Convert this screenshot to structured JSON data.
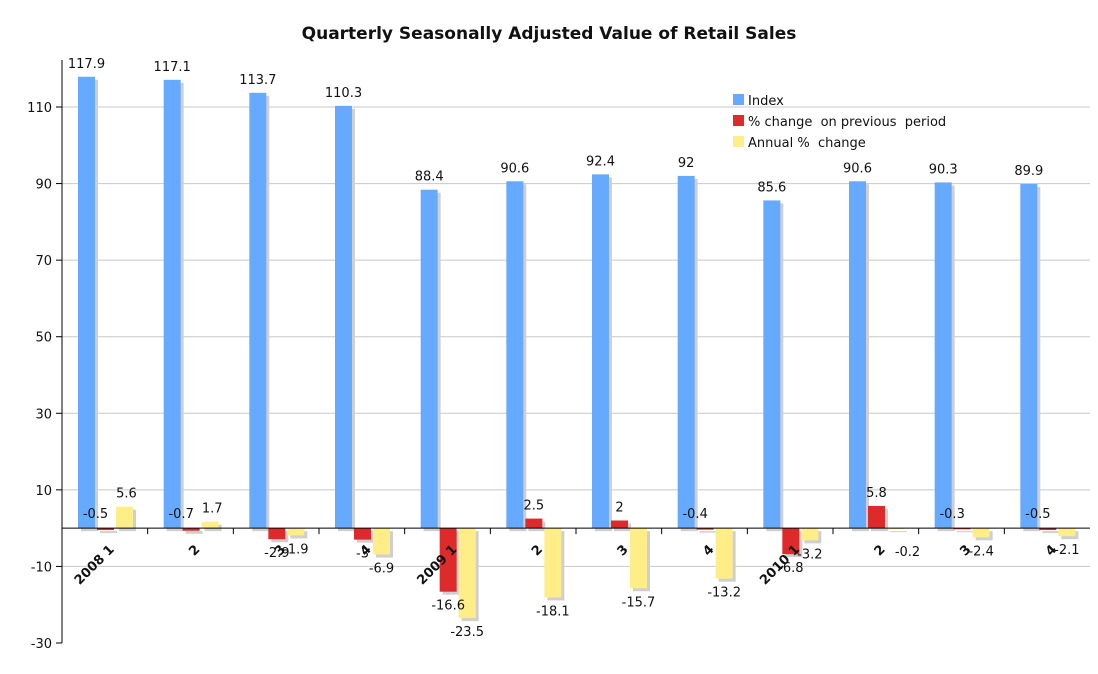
{
  "chart_data": {
    "type": "bar",
    "title": "Quarterly Seasonally Adjusted Value of Retail Sales",
    "xlabel": "",
    "ylabel": "",
    "ylim": [
      -30,
      120
    ],
    "yticks": [
      -30,
      -10,
      10,
      30,
      50,
      70,
      90,
      110
    ],
    "grid": true,
    "legend_position": "top-right",
    "categories": [
      "2008 1",
      "2",
      "3",
      "4",
      "2009 1",
      "2",
      "3",
      "4",
      "2010 1",
      "2",
      "3",
      "4"
    ],
    "series": [
      {
        "name": "Index",
        "color": "#66aaff",
        "values": [
          117.9,
          117.1,
          113.7,
          110.3,
          88.4,
          90.6,
          92.4,
          92,
          85.6,
          90.6,
          90.3,
          89.9
        ]
      },
      {
        "name": "% change  on previous  period",
        "color": "#dd2a2a",
        "values": [
          -0.5,
          -0.7,
          -2.9,
          -3,
          -16.6,
          2.5,
          2,
          -0.4,
          -6.8,
          5.8,
          -0.3,
          -0.5
        ]
      },
      {
        "name": "Annual %  change",
        "color": "#ffee88",
        "values": [
          5.6,
          1.7,
          -1.9,
          -6.9,
          -23.5,
          -18.1,
          -15.7,
          -13.2,
          -3.2,
          -0.2,
          -2.4,
          -2.1
        ]
      }
    ]
  }
}
